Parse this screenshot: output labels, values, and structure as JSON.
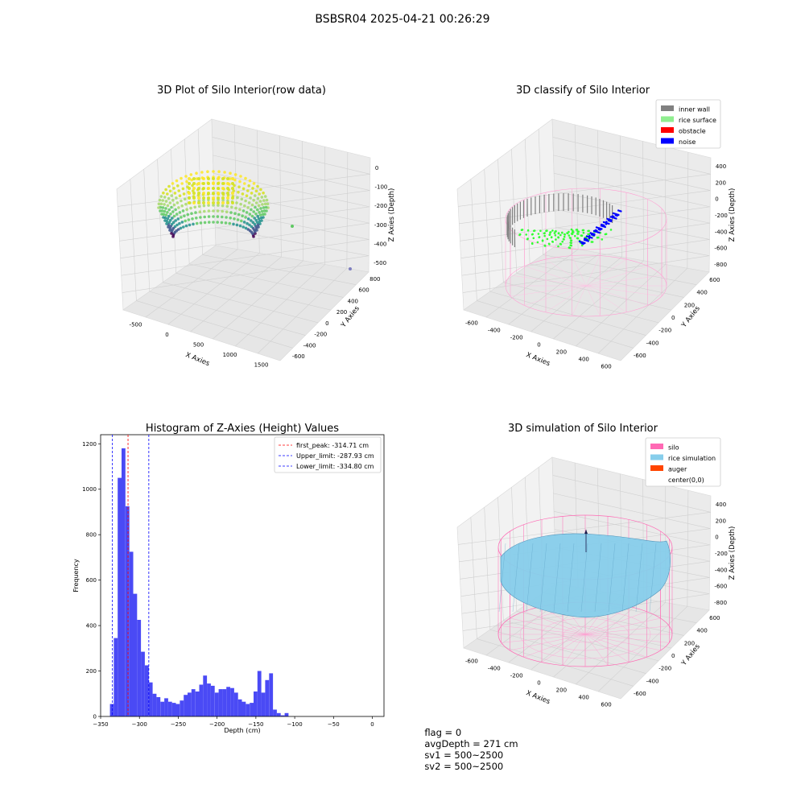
{
  "figure": {
    "suptitle": "BSBSR04 2025-04-21 00:26:29"
  },
  "status": {
    "flag": "flag = 0",
    "avg_depth": "avgDepth = 271 cm",
    "sv1": "sv1 = 500~2500",
    "sv2": "sv2 = 500~2500"
  },
  "chart_data": [
    {
      "type": "scatter",
      "projection": "3d",
      "title": "3D Plot of Silo Interior(row data)",
      "xlabel": "X Axies",
      "ylabel": "Y Axies",
      "zlabel": "Z Axies (Depth)",
      "x_ticks": [
        "-500",
        "0",
        "500",
        "1000",
        "1500"
      ],
      "y_ticks": [
        "-600",
        "-400",
        "-200",
        "0",
        "200",
        "400",
        "600",
        "800"
      ],
      "z_ticks": [
        "-500",
        "-400",
        "-300",
        "-200",
        "-100",
        "0"
      ],
      "colormap": "viridis",
      "grid": true
    },
    {
      "type": "scatter",
      "projection": "3d",
      "title": "3D classify of Silo Interior",
      "xlabel": "X Axies",
      "ylabel": "Y Axies",
      "zlabel": "Z Axies (Depth)",
      "x_ticks": [
        "-600",
        "-400",
        "-200",
        "0",
        "200",
        "400",
        "600"
      ],
      "y_ticks": [
        "-600",
        "-400",
        "-200",
        "0",
        "200",
        "400",
        "600"
      ],
      "z_ticks": [
        "-800",
        "-600",
        "-400",
        "-200",
        "0",
        "200",
        "400"
      ],
      "legend": [
        {
          "label": "inner wall",
          "color": "#808080"
        },
        {
          "label": "rice surface",
          "color": "#90ee90"
        },
        {
          "label": "obstacle",
          "color": "#ff0000"
        },
        {
          "label": "noise",
          "color": "#0000ff"
        }
      ],
      "legend_position": "top-right",
      "grid": true
    },
    {
      "type": "bar",
      "title": "Histogram of Z-Axies (Height) Values",
      "xlabel": "Depth (cm)",
      "ylabel": "Frequency",
      "xlim": [
        -350,
        15
      ],
      "ylim": [
        0,
        1240
      ],
      "x_ticks": [
        -350,
        -300,
        -250,
        -200,
        -150,
        -100,
        -50,
        0
      ],
      "y_ticks": [
        0,
        200,
        400,
        600,
        800,
        1000,
        1200
      ],
      "bar_color": "#4a4af5",
      "bins": [
        {
          "start": -338,
          "end": -333,
          "count": 55
        },
        {
          "start": -333,
          "end": -328,
          "count": 345
        },
        {
          "start": -328,
          "end": -323,
          "count": 1050
        },
        {
          "start": -323,
          "end": -318,
          "count": 1180
        },
        {
          "start": -318,
          "end": -313,
          "count": 925
        },
        {
          "start": -313,
          "end": -308,
          "count": 725
        },
        {
          "start": -308,
          "end": -303,
          "count": 540
        },
        {
          "start": -303,
          "end": -298,
          "count": 425
        },
        {
          "start": -298,
          "end": -293,
          "count": 285
        },
        {
          "start": -293,
          "end": -288,
          "count": 225
        },
        {
          "start": -288,
          "end": -283,
          "count": 150
        },
        {
          "start": -283,
          "end": -278,
          "count": 100
        },
        {
          "start": -278,
          "end": -273,
          "count": 85
        },
        {
          "start": -273,
          "end": -268,
          "count": 65
        },
        {
          "start": -268,
          "end": -263,
          "count": 80
        },
        {
          "start": -263,
          "end": -258,
          "count": 65
        },
        {
          "start": -258,
          "end": -253,
          "count": 60
        },
        {
          "start": -253,
          "end": -248,
          "count": 55
        },
        {
          "start": -248,
          "end": -243,
          "count": 70
        },
        {
          "start": -243,
          "end": -238,
          "count": 95
        },
        {
          "start": -238,
          "end": -233,
          "count": 105
        },
        {
          "start": -233,
          "end": -228,
          "count": 120
        },
        {
          "start": -228,
          "end": -223,
          "count": 110
        },
        {
          "start": -223,
          "end": -218,
          "count": 140
        },
        {
          "start": -218,
          "end": -213,
          "count": 180
        },
        {
          "start": -213,
          "end": -208,
          "count": 145
        },
        {
          "start": -208,
          "end": -203,
          "count": 135
        },
        {
          "start": -203,
          "end": -198,
          "count": 105
        },
        {
          "start": -198,
          "end": -193,
          "count": 120
        },
        {
          "start": -193,
          "end": -188,
          "count": 120
        },
        {
          "start": -188,
          "end": -183,
          "count": 130
        },
        {
          "start": -183,
          "end": -178,
          "count": 125
        },
        {
          "start": -178,
          "end": -173,
          "count": 105
        },
        {
          "start": -173,
          "end": -168,
          "count": 75
        },
        {
          "start": -168,
          "end": -163,
          "count": 65
        },
        {
          "start": -163,
          "end": -158,
          "count": 55
        },
        {
          "start": -158,
          "end": -153,
          "count": 60
        },
        {
          "start": -153,
          "end": -148,
          "count": 110
        },
        {
          "start": -148,
          "end": -143,
          "count": 200
        },
        {
          "start": -143,
          "end": -138,
          "count": 105
        },
        {
          "start": -138,
          "end": -133,
          "count": 160
        },
        {
          "start": -133,
          "end": -128,
          "count": 190
        },
        {
          "start": -128,
          "end": -123,
          "count": 30
        },
        {
          "start": -123,
          "end": -118,
          "count": 15
        },
        {
          "start": -118,
          "end": -113,
          "count": 5
        },
        {
          "start": -113,
          "end": -108,
          "count": 15
        }
      ],
      "vlines": [
        {
          "label": "first_peak: -314.71 cm",
          "value": -314.71,
          "color": "#ff0000"
        },
        {
          "label": "Upper_limit: -287.93 cm",
          "value": -287.93,
          "color": "#0000ff"
        },
        {
          "label": "Lower_limit: -334.80 cm",
          "value": -334.8,
          "color": "#0000ff"
        }
      ],
      "legend_position": "top-right",
      "grid": false
    },
    {
      "type": "surface",
      "projection": "3d",
      "title": "3D simulation of Silo Interior",
      "xlabel": "X Axies",
      "ylabel": "Y Axies",
      "zlabel": "Z Axies (Depth)",
      "x_ticks": [
        "-600",
        "-400",
        "-200",
        "0",
        "200",
        "400",
        "600"
      ],
      "y_ticks": [
        "-600",
        "-400",
        "-200",
        "0",
        "200",
        "400",
        "600"
      ],
      "z_ticks": [
        "-800",
        "-600",
        "-400",
        "-200",
        "0",
        "200",
        "400"
      ],
      "legend": [
        {
          "label": "silo",
          "color": "#ff69b4"
        },
        {
          "label": "rice simulation",
          "color": "#87ceeb"
        },
        {
          "label": "auger",
          "color": "#ff4500"
        },
        {
          "label": "center(0,0)",
          "color": ""
        }
      ],
      "legend_position": "top-right",
      "grid": true
    }
  ]
}
